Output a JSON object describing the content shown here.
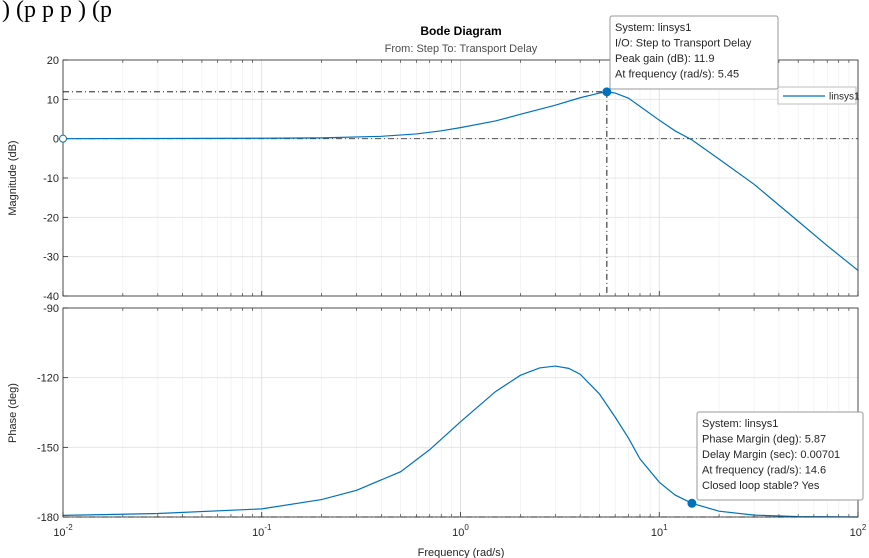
{
  "header_text": ") (p p p ) (p",
  "chart_data": {
    "type": "line",
    "title": "Bode Diagram",
    "subtitle": "From: Step  To: Transport Delay",
    "xlabel": "Frequency  (rad/s)",
    "xscale": "log",
    "xlim": [
      0.01,
      100
    ],
    "x_tick_labels": [
      {
        "base": "10",
        "exp": "-2"
      },
      {
        "base": "10",
        "exp": "-1"
      },
      {
        "base": "10",
        "exp": "0"
      },
      {
        "base": "10",
        "exp": "1"
      },
      {
        "base": "10",
        "exp": "2"
      }
    ],
    "grid": true,
    "legend": {
      "placement": "top-right",
      "entries": [
        "linsys1"
      ]
    },
    "color": "#0072bd",
    "magnitude": {
      "ylabel": "Magnitude (dB)",
      "ylim": [
        -40,
        20
      ],
      "yticks": [
        20,
        10,
        0,
        -10,
        -20,
        -30,
        -40
      ],
      "points": [
        [
          0.01,
          0
        ],
        [
          0.03,
          0.05
        ],
        [
          0.1,
          0.1
        ],
        [
          0.2,
          0.2
        ],
        [
          0.4,
          0.6
        ],
        [
          0.6,
          1.2
        ],
        [
          0.8,
          2.0
        ],
        [
          1.0,
          2.8
        ],
        [
          1.5,
          4.5
        ],
        [
          2.0,
          6.2
        ],
        [
          3.0,
          8.5
        ],
        [
          4.0,
          10.4
        ],
        [
          5.0,
          11.6
        ],
        [
          5.45,
          11.9
        ],
        [
          6.0,
          11.6
        ],
        [
          7.0,
          10.3
        ],
        [
          8.0,
          8.2
        ],
        [
          10.0,
          4.7
        ],
        [
          12.0,
          2.0
        ],
        [
          14.6,
          -0.3
        ],
        [
          20.0,
          -5.2
        ],
        [
          30.0,
          -11.6
        ],
        [
          50.0,
          -21.0
        ],
        [
          70.0,
          -27.2
        ],
        [
          100.0,
          -33.5
        ]
      ],
      "reference_line": 0,
      "start_marker": [
        0.01,
        0
      ]
    },
    "phase": {
      "ylabel": "Phase (deg)",
      "ylim": [
        -180,
        -90
      ],
      "yticks": [
        -90,
        -120,
        -150,
        -180
      ],
      "points": [
        [
          0.01,
          -179.3
        ],
        [
          0.03,
          -178.5
        ],
        [
          0.1,
          -176.5
        ],
        [
          0.2,
          -172.5
        ],
        [
          0.3,
          -168.5
        ],
        [
          0.5,
          -160.5
        ],
        [
          0.7,
          -151
        ],
        [
          1.0,
          -139
        ],
        [
          1.5,
          -126
        ],
        [
          2.0,
          -119
        ],
        [
          2.5,
          -115.8
        ],
        [
          3.0,
          -115
        ],
        [
          3.5,
          -116
        ],
        [
          4.0,
          -118.5
        ],
        [
          5.0,
          -127
        ],
        [
          6.0,
          -137
        ],
        [
          7.0,
          -146
        ],
        [
          8.0,
          -155
        ],
        [
          10.0,
          -165
        ],
        [
          12.0,
          -170.5
        ],
        [
          14.6,
          -174.1
        ],
        [
          20.0,
          -177.5
        ],
        [
          30.0,
          -179.2
        ],
        [
          50.0,
          -179.8
        ],
        [
          100.0,
          -180
        ]
      ],
      "reference_line": -180
    },
    "datatips": [
      {
        "panel": "magnitude",
        "x": 5.45,
        "y": 11.9,
        "lines": [
          "System: linsys1",
          "I/O: Step to Transport Delay",
          "Peak gain (dB): 11.9",
          "At frequency (rad/s): 5.45"
        ]
      },
      {
        "panel": "phase",
        "x": 14.6,
        "y": -174.1,
        "lines": [
          "System: linsys1",
          "Phase Margin (deg): 5.87",
          "Delay Margin (sec): 0.00701",
          "At frequency (rad/s): 14.6",
          "Closed loop stable? Yes"
        ]
      }
    ]
  }
}
